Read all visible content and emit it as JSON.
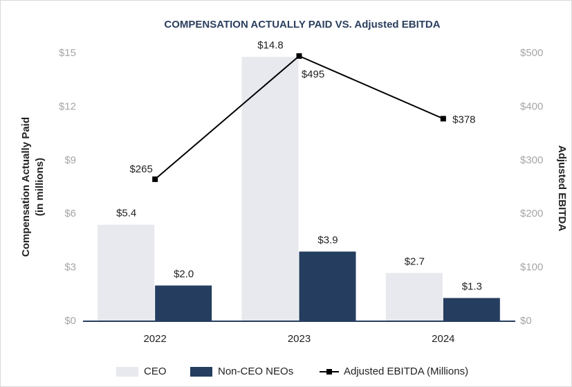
{
  "chart_data": {
    "type": "bar_line",
    "title": "COMPENSATION ACTUALLY PAID VS. Adjusted EBITDA",
    "y_label": [
      "Compensation Actually Paid",
      "(in millions)"
    ],
    "y2_label": "Adjusted EBITDA",
    "categories": [
      "2022",
      "2023",
      "2024"
    ],
    "series": [
      {
        "name": "CEO",
        "type": "bar",
        "color": "#e8e9ee",
        "values": [
          5.4,
          14.8,
          2.7
        ],
        "value_labels": [
          "$5.4",
          "$14.8",
          "$2.7"
        ]
      },
      {
        "name": "Non-CEO NEOs",
        "type": "bar",
        "color": "#253d5e",
        "values": [
          2.0,
          3.9,
          1.3
        ],
        "value_labels": [
          "$2.0",
          "$3.9",
          "$1.3"
        ]
      },
      {
        "name": "Adjusted EBITDA (Millions)",
        "type": "line",
        "axis": "y2",
        "color": "#000000",
        "values": [
          265,
          495,
          378
        ],
        "value_labels": [
          "$265",
          "$495",
          "$378"
        ]
      }
    ],
    "ylim": [
      0,
      15
    ],
    "yticks": [
      {
        "value": 0,
        "label": "$0"
      },
      {
        "value": 3,
        "label": "$3"
      },
      {
        "value": 6,
        "label": "$6"
      },
      {
        "value": 9,
        "label": "$9"
      },
      {
        "value": 12,
        "label": "$12"
      },
      {
        "value": 15,
        "label": "$15"
      }
    ],
    "y2lim": [
      0,
      500
    ],
    "y2ticks": [
      {
        "value": 0,
        "label": "$0"
      },
      {
        "value": 100,
        "label": "$100"
      },
      {
        "value": 200,
        "label": "$200"
      },
      {
        "value": 300,
        "label": "$300"
      },
      {
        "value": 400,
        "label": "$400"
      },
      {
        "value": 500,
        "label": "$500"
      }
    ],
    "legend": "bottom"
  }
}
